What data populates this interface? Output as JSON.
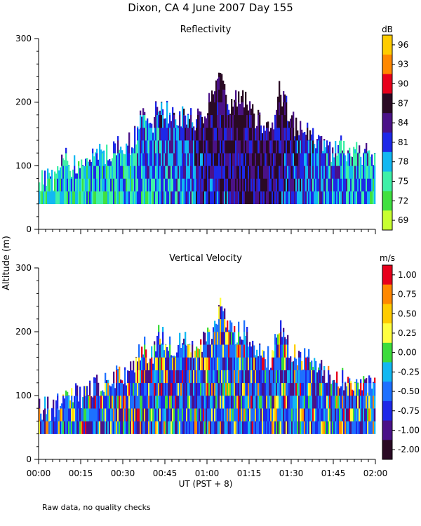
{
  "title": "Dixon, CA   4 June 2007   Day 155",
  "footnote": "Raw data, no quality checks",
  "ylabel": "Altitude (m)",
  "xlabel": "UT   (PST + 8)",
  "chart_data": [
    {
      "type": "heatmap",
      "title": "Reflectivity",
      "colorbar": {
        "unit": "dB",
        "labels": [
          "96",
          "93",
          "90",
          "87",
          "84",
          "81",
          "78",
          "75",
          "72",
          "69"
        ],
        "colors": [
          "#ffcc00",
          "#ff8800",
          "#e8001c",
          "#2a0a24",
          "#4b1288",
          "#1d28e8",
          "#12b8f2",
          "#3ff0a8",
          "#40e040",
          "#c8ff30"
        ]
      },
      "ylim": [
        0,
        300
      ],
      "yticks": [
        "0",
        "100",
        "200",
        "300"
      ],
      "xlim": [
        0,
        120
      ],
      "xticks": [
        "00:00",
        "00:15",
        "00:30",
        "00:45",
        "01:00",
        "01:15",
        "01:30",
        "01:45",
        "02:00"
      ],
      "echo_base_m": 40,
      "echo_top_m": [
        100,
        100,
        100,
        130,
        120,
        120,
        130,
        140,
        140,
        150,
        150,
        160,
        200,
        180,
        220,
        200,
        200,
        200,
        190,
        200,
        220,
        260,
        220,
        220,
        220,
        200,
        180,
        180,
        240,
        200,
        180,
        180,
        160,
        160,
        140,
        150,
        140,
        140,
        140,
        140
      ]
    },
    {
      "type": "heatmap",
      "title": "Vertical Velocity",
      "colorbar": {
        "unit": "m/s",
        "labels": [
          "1.00",
          "0.75",
          "0.50",
          "0.25",
          "0.00",
          "-0.25",
          "-0.50",
          "-0.75",
          "-1.00",
          "-2.00"
        ],
        "colors": [
          "#e8001c",
          "#ff8800",
          "#ffcc00",
          "#ffff40",
          "#3cdc3c",
          "#12b8f2",
          "#1d70ff",
          "#1d28e8",
          "#4b1288",
          "#2a0a24"
        ]
      },
      "ylim": [
        0,
        300
      ],
      "yticks": [
        "0",
        "100",
        "200",
        "300"
      ],
      "xlim": [
        0,
        120
      ],
      "xticks": [
        "00:00",
        "00:15",
        "00:30",
        "00:45",
        "01:00",
        "01:15",
        "01:30",
        "01:45",
        "02:00"
      ],
      "echo_base_m": 40,
      "echo_top_m": [
        100,
        100,
        100,
        130,
        120,
        120,
        130,
        140,
        140,
        150,
        150,
        160,
        200,
        180,
        220,
        200,
        200,
        200,
        190,
        200,
        220,
        260,
        220,
        220,
        220,
        200,
        180,
        180,
        240,
        200,
        180,
        180,
        160,
        160,
        140,
        150,
        140,
        140,
        140,
        140
      ]
    }
  ]
}
